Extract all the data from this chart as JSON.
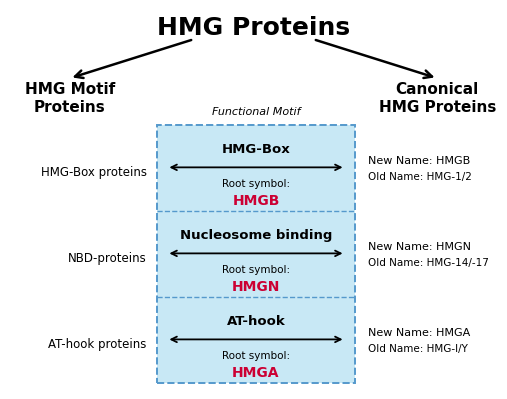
{
  "title": "HMG Proteins",
  "title_fontsize": 18,
  "title_fontweight": "bold",
  "left_header": "HMG Motif\nProteins",
  "right_header": "Canonical\nHMG Proteins",
  "header_fontsize": 11,
  "header_fontweight": "bold",
  "functional_motif_label": "Functional Motif",
  "rows": [
    {
      "left_label": "HMG-Box proteins",
      "motif_name": "HMG-Box",
      "root_symbol": "HMGB",
      "right_new": "New Name: HMGB",
      "right_old": "Old Name: HMG-1/2"
    },
    {
      "left_label": "NBD-proteins",
      "motif_name": "Nucleosome binding",
      "root_symbol": "HMGN",
      "right_new": "New Name: HMGN",
      "right_old": "Old Name: HMG-14/-17"
    },
    {
      "left_label": "AT-hook proteins",
      "motif_name": "AT-hook",
      "root_symbol": "HMGA",
      "right_new": "New Name: HMGA",
      "right_old": "Old Name: HMG-I/Y"
    }
  ],
  "box_bg_color": "#c8e8f5",
  "box_border_color": "#5599cc",
  "text_color_black": "#000000",
  "text_color_red": "#cc0033",
  "background_color": "#ffffff",
  "figw": 5.07,
  "figh": 3.99,
  "dpi": 100
}
